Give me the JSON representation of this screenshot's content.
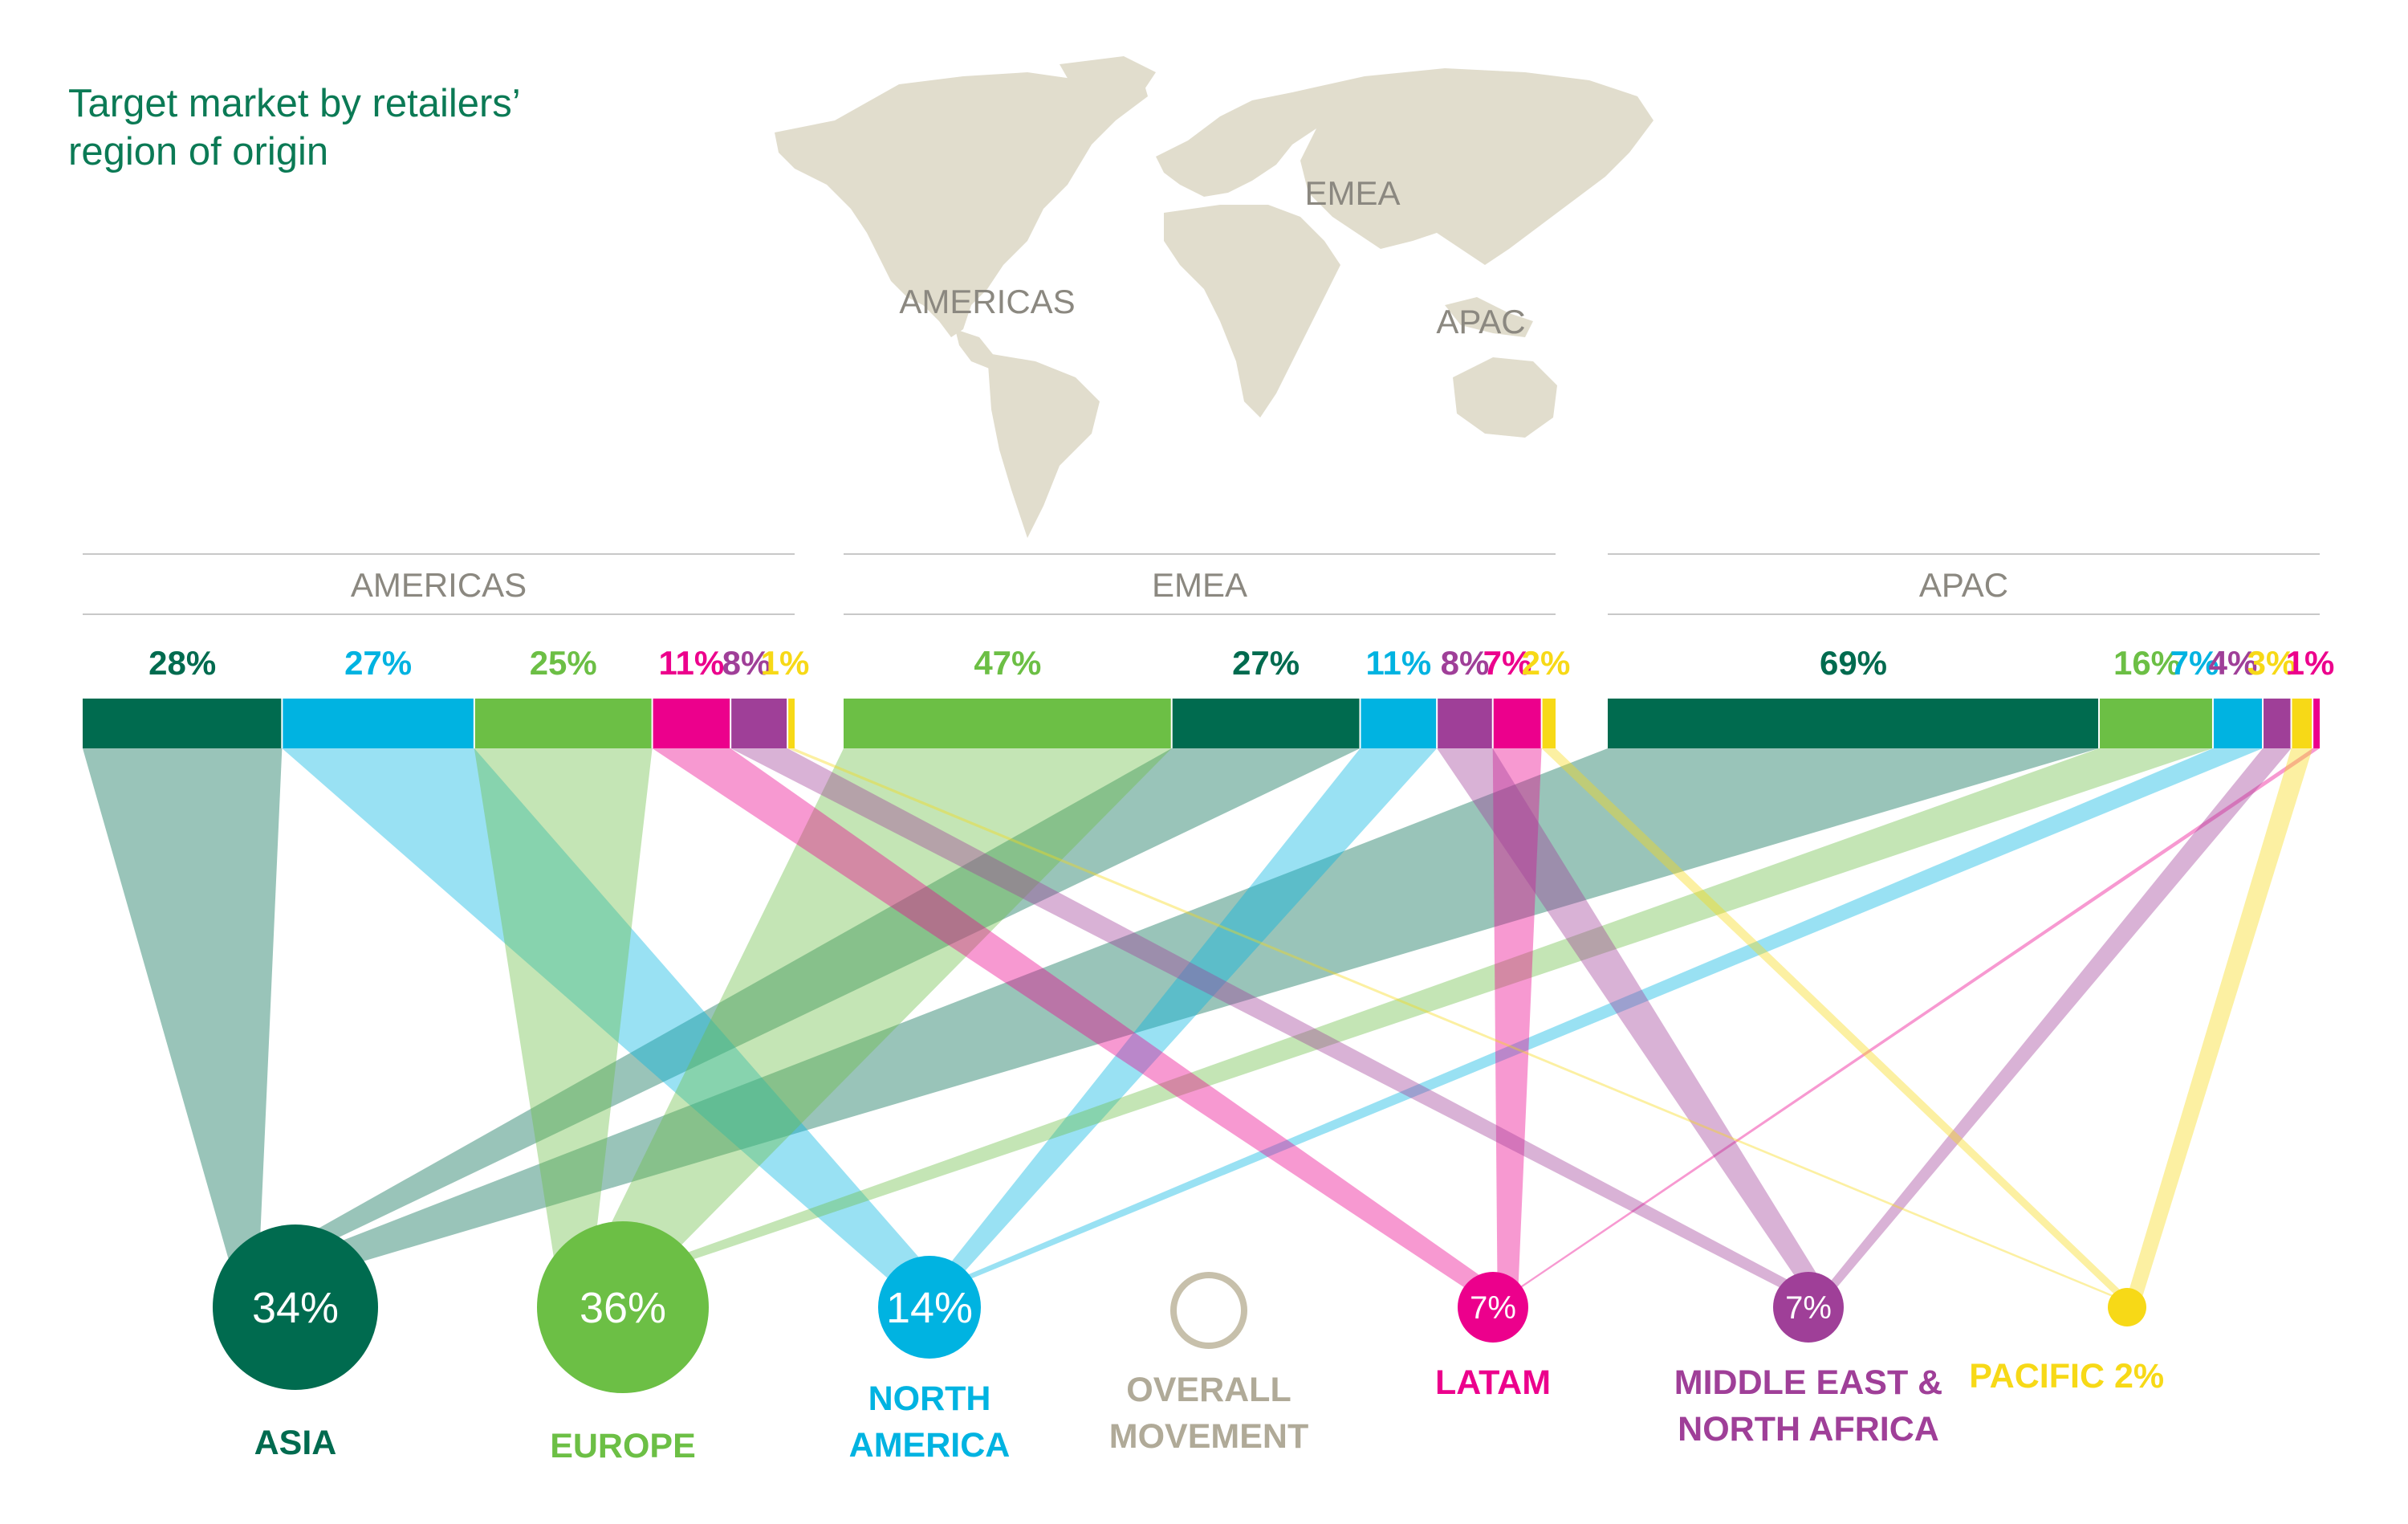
{
  "title_lines": [
    "Target market by retailers’",
    "region of origin"
  ],
  "map_labels": {
    "americas": "AMERICAS",
    "emea": "EMEA",
    "apac": "APAC"
  },
  "colors": {
    "asia": "#006b4f",
    "europe": "#6cbf45",
    "north_america": "#00b3e1",
    "latam": "#ec008c",
    "mena": "#9f3f98",
    "pacific": "#f7d917",
    "map": "#e1ddcd",
    "overall": "#c7c0ab",
    "divider": "#c8c8c8",
    "label_grey": "#8b8880"
  },
  "chart_data": {
    "type": "flow",
    "origins": [
      {
        "name": "AMERICAS",
        "shares": [
          {
            "dest": "asia",
            "value": 28,
            "label": "28%"
          },
          {
            "dest": "north_america",
            "value": 27,
            "label": "27%"
          },
          {
            "dest": "europe",
            "value": 25,
            "label": "25%"
          },
          {
            "dest": "latam",
            "value": 11,
            "label": "11%"
          },
          {
            "dest": "mena",
            "value": 8,
            "label": "8%"
          },
          {
            "dest": "pacific",
            "value": 1,
            "label": "1%"
          }
        ]
      },
      {
        "name": "EMEA",
        "shares": [
          {
            "dest": "europe",
            "value": 47,
            "label": "47%"
          },
          {
            "dest": "asia",
            "value": 27,
            "label": "27%"
          },
          {
            "dest": "north_america",
            "value": 11,
            "label": "11%"
          },
          {
            "dest": "mena",
            "value": 8,
            "label": "8%"
          },
          {
            "dest": "latam",
            "value": 7,
            "label": "7%"
          },
          {
            "dest": "pacific",
            "value": 2,
            "label": "2%"
          }
        ]
      },
      {
        "name": "APAC",
        "shares": [
          {
            "dest": "asia",
            "value": 69,
            "label": "69%"
          },
          {
            "dest": "europe",
            "value": 16,
            "label": "16%"
          },
          {
            "dest": "north_america",
            "value": 7,
            "label": "7%"
          },
          {
            "dest": "mena",
            "value": 4,
            "label": "4%"
          },
          {
            "dest": "pacific",
            "value": 3,
            "label": "3%"
          },
          {
            "dest": "latam",
            "value": 1,
            "label": "1%"
          }
        ]
      }
    ],
    "destinations": [
      {
        "key": "asia",
        "value": 34,
        "label": "34%",
        "name_lines": [
          "ASIA"
        ]
      },
      {
        "key": "europe",
        "value": 36,
        "label": "36%",
        "name_lines": [
          "EUROPE"
        ]
      },
      {
        "key": "north_america",
        "value": 14,
        "label": "14%",
        "name_lines": [
          "NORTH",
          "AMERICA"
        ]
      },
      {
        "key": "latam",
        "value": 7,
        "label": "7%",
        "name_lines": [
          "LATAM"
        ]
      },
      {
        "key": "mena",
        "value": 7,
        "label": "7%",
        "name_lines": [
          "MIDDLE EAST &",
          "NORTH AFRICA"
        ]
      },
      {
        "key": "pacific",
        "value": 2,
        "label": "2%",
        "name_lines": [
          "PACIFIC"
        ]
      }
    ],
    "overall": {
      "name_lines": [
        "OVERALL",
        "MOVEMENT"
      ]
    }
  }
}
